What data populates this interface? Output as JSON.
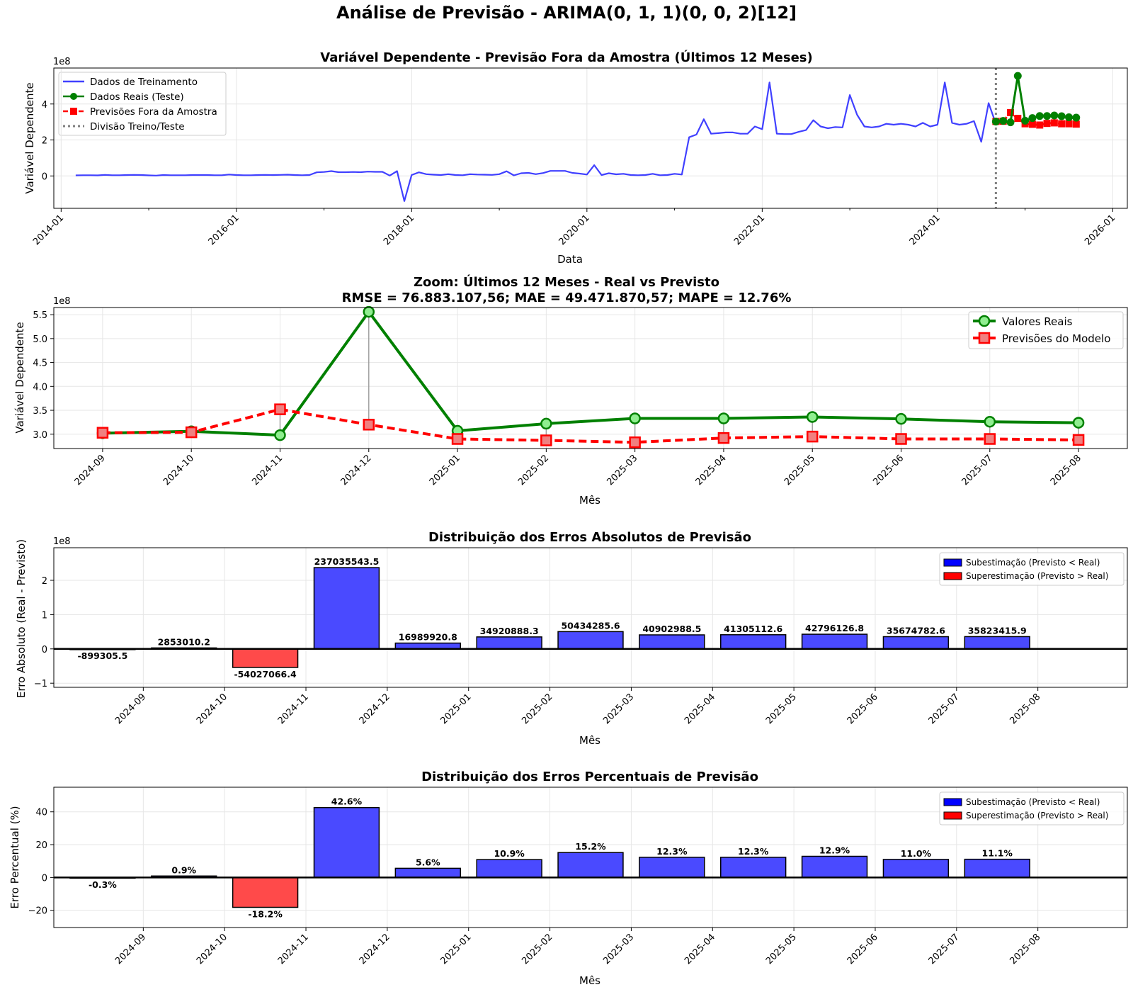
{
  "figure": {
    "suptitle": "Análise de Previsão - ARIMA(0, 1, 1)(0, 0, 2)[12]"
  },
  "colors": {
    "train": "#4040ff",
    "real": "#008000",
    "real_marker_fill": "#90ee90",
    "forecast": "#ff0000",
    "forecast_marker_fill": "#f08080",
    "split": "#808080",
    "bar_under": "#4a4aff",
    "bar_over": "#ff4a4a",
    "grid": "#e6e6e6"
  },
  "chart_data": [
    {
      "type": "line",
      "title": "Variável Dependente - Previsão Fora da Amostra (Últimos 12 Meses)",
      "xlabel": "Data",
      "ylabel": "Variável Dependente",
      "y_multiplier": "1e8",
      "ylim": [
        -1.8,
        6.0
      ],
      "yticks": [
        "-",
        "0",
        "2",
        "4"
      ],
      "ytick_values": [
        0,
        2,
        4
      ],
      "xlim": [
        "2013-12",
        "2026-03"
      ],
      "xticks": [
        "2014-01",
        "2016-01",
        "2018-01",
        "2020-01",
        "2022-01",
        "2024-01",
        "2026-01"
      ],
      "legend_position": "top-left",
      "grid": true,
      "legend": {
        "train": "Dados de Treinamento",
        "real": "Dados Reais (Teste)",
        "forecast": "Previsões Fora da Amostra",
        "split": "Divisão Treino/Teste"
      },
      "split_date": "2024-09",
      "series": [
        {
          "name": "Dados de Treinamento",
          "start": "2014-03",
          "values": [
            0.03,
            0.04,
            0.04,
            0.03,
            0.06,
            0.04,
            0.04,
            0.05,
            0.06,
            0.05,
            0.03,
            0.02,
            0.05,
            0.04,
            0.04,
            0.04,
            0.05,
            0.05,
            0.05,
            0.04,
            0.04,
            0.08,
            0.05,
            0.04,
            0.04,
            0.05,
            0.06,
            0.05,
            0.06,
            0.07,
            0.05,
            0.04,
            0.05,
            0.2,
            0.22,
            0.27,
            0.21,
            0.21,
            0.22,
            0.21,
            0.24,
            0.23,
            0.23,
            0.02,
            0.27,
            -1.4,
            0.05,
            0.2,
            0.1,
            0.07,
            0.05,
            0.1,
            0.05,
            0.04,
            0.1,
            0.08,
            0.07,
            0.06,
            0.1,
            0.26,
            0.03,
            0.15,
            0.17,
            0.1,
            0.16,
            0.28,
            0.28,
            0.28,
            0.17,
            0.13,
            0.08,
            0.6,
            0.05,
            0.15,
            0.09,
            0.12,
            0.05,
            0.04,
            0.05,
            0.12,
            0.04,
            0.05,
            0.12,
            0.08,
            2.15,
            2.3,
            3.15,
            2.35,
            2.38,
            2.42,
            2.42,
            2.35,
            2.35,
            2.75,
            2.6,
            5.2,
            2.35,
            2.33,
            2.33,
            2.45,
            2.55,
            3.1,
            2.75,
            2.65,
            2.72,
            2.7,
            4.5,
            3.4,
            2.75,
            2.7,
            2.75,
            2.9,
            2.85,
            2.9,
            2.85,
            2.75,
            2.95,
            2.75,
            2.85,
            5.2,
            2.95,
            2.85,
            2.9,
            3.05,
            1.9,
            4.05,
            2.9,
            2.95
          ]
        },
        {
          "name": "Dados Reais (Teste)",
          "start": "2024-09",
          "values": [
            3.02,
            3.06,
            2.98,
            5.56,
            3.07,
            3.22,
            3.33,
            3.33,
            3.36,
            3.32,
            3.26,
            3.24
          ]
        },
        {
          "name": "Previsões Fora da Amostra",
          "start": "2024-09",
          "values": [
            3.03,
            3.04,
            3.52,
            3.2,
            2.9,
            2.87,
            2.83,
            2.92,
            2.95,
            2.9,
            2.9,
            2.88
          ]
        }
      ]
    },
    {
      "type": "line",
      "title": "Zoom: Últimos 12 Meses - Real vs Previsto",
      "subtitle": "RMSE = 76.883.107,56; MAE = 49.471.870,57; MAPE = 12.76%",
      "xlabel": "Mês",
      "ylabel": "Variável Dependente",
      "y_multiplier": "1e8",
      "ylim": [
        2.7,
        5.65
      ],
      "yticks": [
        "3.0",
        "3.5",
        "4.0",
        "4.5",
        "5.0",
        "5.5"
      ],
      "ytick_values": [
        3.0,
        3.5,
        4.0,
        4.5,
        5.0,
        5.5
      ],
      "categories": [
        "2024-09",
        "2024-10",
        "2024-11",
        "2024-12",
        "2025-01",
        "2025-02",
        "2025-03",
        "2025-04",
        "2025-05",
        "2025-06",
        "2025-07",
        "2025-08"
      ],
      "legend_position": "top-right",
      "grid": true,
      "series": [
        {
          "name": "Valores Reais",
          "values": [
            3.02,
            3.06,
            2.98,
            5.56,
            3.07,
            3.22,
            3.33,
            3.33,
            3.36,
            3.32,
            3.26,
            3.24
          ]
        },
        {
          "name": "Previsões do Modelo",
          "values": [
            3.03,
            3.04,
            3.52,
            3.2,
            2.9,
            2.87,
            2.83,
            2.92,
            2.95,
            2.9,
            2.9,
            2.88
          ]
        }
      ]
    },
    {
      "type": "bar",
      "title": "Distribuição dos Erros Absolutos de Previsão",
      "xlabel": "Mês",
      "ylabel": "Erro Absoluto (Real - Previsto)",
      "y_multiplier": "1e8",
      "ylim": [
        -1.12,
        2.95
      ],
      "yticks": [
        "−1",
        "0",
        "1",
        "2"
      ],
      "ytick_values": [
        -1,
        0,
        1,
        2
      ],
      "categories": [
        "2024-09",
        "2024-10",
        "2024-11",
        "2024-12",
        "2025-01",
        "2025-02",
        "2025-03",
        "2025-04",
        "2025-05",
        "2025-06",
        "2025-07",
        "2025-08"
      ],
      "values": [
        -899305.5,
        2853010.2,
        -54027066.4,
        237035543.5,
        16989920.8,
        34920888.3,
        50434285.6,
        40902988.5,
        41305112.6,
        42796126.8,
        35674782.6,
        35823415.9
      ],
      "labels": [
        "-899305.5",
        "2853010.2",
        "-54027066.4",
        "237035543.5",
        "16989920.8",
        "34920888.3",
        "50434285.6",
        "40902988.5",
        "41305112.6",
        "42796126.8",
        "35674782.6",
        "35823415.9"
      ],
      "legend_position": "top-right",
      "grid": true,
      "legend": {
        "under": "Subestimação (Previsto < Real)",
        "over": "Superestimação (Previsto > Real)"
      }
    },
    {
      "type": "bar",
      "title": "Distribuição dos Erros Percentuais de Previsão",
      "xlabel": "Mês",
      "ylabel": "Erro Percentual (%)",
      "ylim": [
        -30.5,
        55
      ],
      "yticks": [
        "−20",
        "0",
        "20",
        "40"
      ],
      "ytick_values": [
        -20,
        0,
        20,
        40
      ],
      "categories": [
        "2024-09",
        "2024-10",
        "2024-11",
        "2024-12",
        "2025-01",
        "2025-02",
        "2025-03",
        "2025-04",
        "2025-05",
        "2025-06",
        "2025-07",
        "2025-08"
      ],
      "values": [
        -0.3,
        0.9,
        -18.2,
        42.6,
        5.6,
        10.9,
        15.2,
        12.3,
        12.3,
        12.9,
        11.0,
        11.1
      ],
      "labels": [
        "-0.3%",
        "0.9%",
        "-18.2%",
        "42.6%",
        "5.6%",
        "10.9%",
        "15.2%",
        "12.3%",
        "12.3%",
        "12.9%",
        "11.0%",
        "11.1%"
      ],
      "legend_position": "top-right",
      "grid": true,
      "legend": {
        "under": "Subestimação (Previsto < Real)",
        "over": "Superestimação (Previsto > Real)"
      }
    }
  ]
}
